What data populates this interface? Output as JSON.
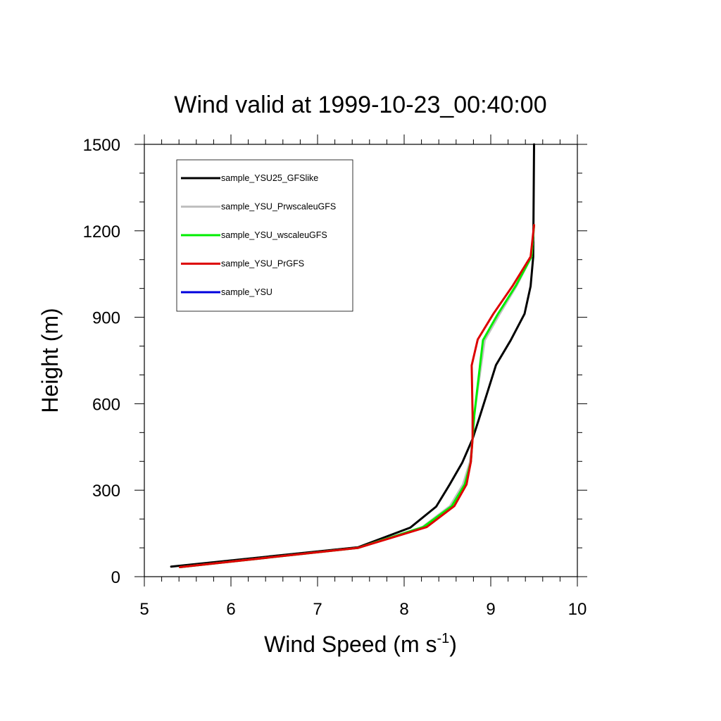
{
  "chart_data": {
    "type": "line",
    "title": "Wind valid at 1999-10-23_00:40:00",
    "xlabel": "Wind Speed (m s",
    "xlabel_sup": "-1",
    "xlabel_end": ")",
    "ylabel": "Height (m)",
    "xlim": [
      5,
      10
    ],
    "ylim": [
      0,
      1500
    ],
    "xticks": [
      5,
      6,
      7,
      8,
      9,
      10
    ],
    "yticks": [
      0,
      300,
      600,
      900,
      1200,
      1500
    ],
    "grid": false,
    "legend_position": "top-left",
    "series": [
      {
        "name": "sample_YSU25_GFSlike",
        "color": "#000000",
        "points": [
          [
            5.31,
            35
          ],
          [
            7.47,
            102
          ],
          [
            8.07,
            170
          ],
          [
            8.37,
            243
          ],
          [
            8.52,
            317
          ],
          [
            8.67,
            395
          ],
          [
            8.79,
            478
          ],
          [
            8.88,
            562
          ],
          [
            8.97,
            648
          ],
          [
            9.06,
            734
          ],
          [
            9.23,
            820
          ],
          [
            9.39,
            912
          ],
          [
            9.46,
            1008
          ],
          [
            9.49,
            1110
          ],
          [
            9.5,
            1500
          ]
        ]
      },
      {
        "name": "sample_YSU_PrwscaleuGFS",
        "color": "#c0c0c0",
        "points": [
          [
            5.41,
            33
          ],
          [
            7.47,
            100
          ],
          [
            8.21,
            172
          ],
          [
            8.53,
            245
          ],
          [
            8.68,
            320
          ],
          [
            8.76,
            398
          ],
          [
            8.79,
            480
          ],
          [
            8.81,
            560
          ],
          [
            8.85,
            650
          ],
          [
            8.93,
            820
          ],
          [
            9.1,
            910
          ],
          [
            9.3,
            1010
          ],
          [
            9.47,
            1110
          ],
          [
            9.5,
            1220
          ]
        ]
      },
      {
        "name": "sample_YSU_wscaleuGFS",
        "color": "#00ee00",
        "points": [
          [
            5.41,
            33
          ],
          [
            7.47,
            100
          ],
          [
            8.22,
            172
          ],
          [
            8.55,
            245
          ],
          [
            8.7,
            320
          ],
          [
            8.77,
            398
          ],
          [
            8.79,
            480
          ],
          [
            8.81,
            560
          ],
          [
            8.84,
            640
          ],
          [
            8.91,
            820
          ],
          [
            9.08,
            910
          ],
          [
            9.29,
            1010
          ],
          [
            9.47,
            1110
          ],
          [
            9.5,
            1220
          ]
        ]
      },
      {
        "name": "sample_YSU_PrGFS",
        "color": "#dd0000",
        "points": [
          [
            5.41,
            33
          ],
          [
            7.47,
            100
          ],
          [
            8.26,
            172
          ],
          [
            8.58,
            245
          ],
          [
            8.72,
            320
          ],
          [
            8.77,
            398
          ],
          [
            8.79,
            480
          ],
          [
            8.79,
            560
          ],
          [
            8.78,
            733
          ],
          [
            8.85,
            823
          ],
          [
            9.03,
            912
          ],
          [
            9.25,
            1008
          ],
          [
            9.46,
            1110
          ],
          [
            9.5,
            1220
          ]
        ]
      },
      {
        "name": "sample_YSU",
        "color": "#0000dd",
        "points": []
      }
    ]
  }
}
